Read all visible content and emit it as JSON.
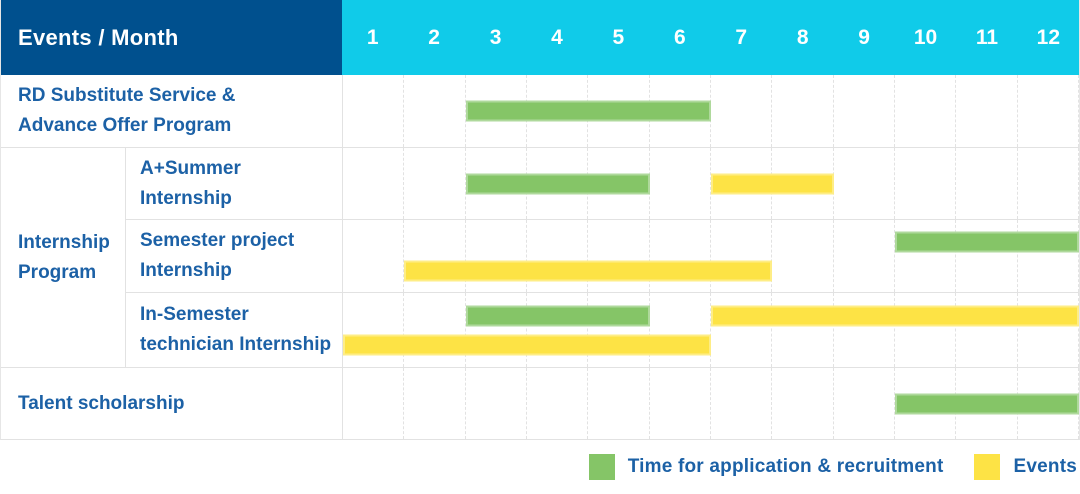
{
  "colors": {
    "navy": "#00508e",
    "cyan": "#10cbe9",
    "green": "#85c567",
    "yellow": "#fde345",
    "label_blue": "#1c61a6",
    "grid_line": "#e2e2e2"
  },
  "chart_data": {
    "type": "bar",
    "subtype": "gantt-schedule",
    "header_label": "Events / Month",
    "x_categories": [
      "1",
      "2",
      "3",
      "4",
      "5",
      "6",
      "7",
      "8",
      "9",
      "10",
      "11",
      "12"
    ],
    "x_axis_label": "Month",
    "grid": "dashed-vertical-month-lines",
    "legend_position": "bottom-right",
    "legend": [
      {
        "series": "green",
        "label": "Time for application & recruitment",
        "color": "#85c567"
      },
      {
        "series": "yellow",
        "label": "Events",
        "color": "#fde345"
      }
    ],
    "group_label": "Internship\nProgram",
    "rows": [
      {
        "label": "RD Substitute Service &\nAdvance Offer Program",
        "group": null,
        "lanes": 1,
        "bars": [
          {
            "lane": 0,
            "series": "green",
            "start_month": 3,
            "end_month": 6
          }
        ]
      },
      {
        "label": "A+Summer\nInternship",
        "group": "Internship Program",
        "lanes": 1,
        "bars": [
          {
            "lane": 0,
            "series": "green",
            "start_month": 3,
            "end_month": 5
          },
          {
            "lane": 0,
            "series": "yellow",
            "start_month": 7,
            "end_month": 8
          }
        ]
      },
      {
        "label": "Semester project\nInternship",
        "group": "Internship Program",
        "lanes": 2,
        "bars": [
          {
            "lane": 0,
            "series": "green",
            "start_month": 10,
            "end_month": 12
          },
          {
            "lane": 1,
            "series": "yellow",
            "start_month": 2,
            "end_month": 7
          }
        ]
      },
      {
        "label": "In-Semester\ntechnician Internship",
        "group": "Internship Program",
        "lanes": 2,
        "bars": [
          {
            "lane": 0,
            "series": "green",
            "start_month": 3,
            "end_month": 5
          },
          {
            "lane": 0,
            "series": "yellow",
            "start_month": 7,
            "end_month": 12
          },
          {
            "lane": 1,
            "series": "yellow",
            "start_month": 1,
            "end_month": 6
          }
        ]
      },
      {
        "label": "Talent scholarship",
        "group": null,
        "lanes": 1,
        "bars": [
          {
            "lane": 0,
            "series": "green",
            "start_month": 10,
            "end_month": 12
          }
        ]
      }
    ]
  }
}
